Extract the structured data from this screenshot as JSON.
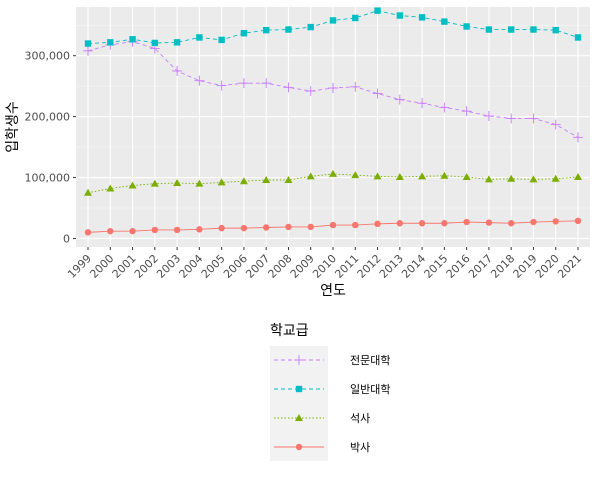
{
  "chart_data": {
    "type": "line",
    "xlabel": "연도",
    "ylabel": "입학생수",
    "ylim": [
      0,
      380000
    ],
    "y_ticks": [
      0,
      100000,
      200000,
      300000
    ],
    "y_tick_labels": [
      "0",
      "100,000",
      "200,000",
      "300,000"
    ],
    "grid": true,
    "legend_position": "bottom",
    "legend_title": "학교급",
    "x": [
      "1999",
      "2000",
      "2001",
      "2002",
      "2003",
      "2004",
      "2005",
      "2006",
      "2007",
      "2008",
      "2009",
      "2010",
      "2011",
      "2012",
      "2013",
      "2014",
      "2015",
      "2016",
      "2017",
      "2018",
      "2019",
      "2020",
      "2021"
    ],
    "series": [
      {
        "name": "전문대학",
        "color": "#c77cff",
        "marker": "plus",
        "line": "dashed",
        "values": [
          308000,
          318000,
          323000,
          312000,
          275000,
          259000,
          251000,
          255000,
          255000,
          248000,
          242000,
          247000,
          249000,
          238000,
          228000,
          222000,
          215000,
          209000,
          201000,
          197000,
          197000,
          187000,
          166000
        ]
      },
      {
        "name": "일반대학",
        "color": "#00bfc4",
        "marker": "square",
        "line": "dashed",
        "values": [
          320000,
          322000,
          327000,
          321000,
          322000,
          330000,
          326000,
          337000,
          342000,
          343000,
          347000,
          358000,
          362000,
          374000,
          366000,
          363000,
          356000,
          348000,
          343000,
          343000,
          343000,
          342000,
          330000
        ]
      },
      {
        "name": "석사",
        "color": "#7cae00",
        "marker": "triangle",
        "line": "dotted",
        "values": [
          75000,
          82000,
          87000,
          90000,
          91000,
          90000,
          92000,
          94000,
          96000,
          96000,
          102000,
          106000,
          104000,
          102000,
          101000,
          102000,
          103000,
          101000,
          97000,
          98000,
          97000,
          98000,
          101000
        ]
      },
      {
        "name": "박사",
        "color": "#f8766d",
        "marker": "circle",
        "line": "solid",
        "values": [
          10000,
          12000,
          12000,
          14000,
          14000,
          15000,
          17000,
          17000,
          18000,
          19000,
          19000,
          22000,
          22000,
          24000,
          25000,
          25000,
          25000,
          27000,
          26000,
          25000,
          27000,
          28000,
          29000
        ]
      }
    ],
    "legend_order": [
      "전문대학",
      "일반대학",
      "석사",
      "박사"
    ]
  }
}
